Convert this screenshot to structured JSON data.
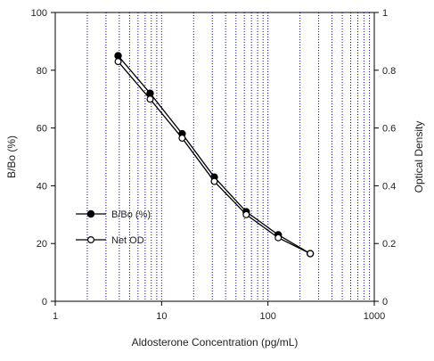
{
  "chart_data": {
    "type": "line",
    "title": "",
    "xlabel": "Aldosterone Concentration (pg/mL)",
    "ylabel": "B/Bo (%)",
    "y2label": "Optical Density",
    "xscale": "log",
    "xlim": [
      1,
      1000
    ],
    "ylim": [
      0,
      100
    ],
    "y2lim": [
      0,
      1
    ],
    "x_ticks": [
      1,
      10,
      100,
      1000
    ],
    "y_ticks": [
      0,
      20,
      40,
      60,
      80,
      100
    ],
    "y2_ticks": [
      0,
      0.2,
      0.4,
      0.6,
      0.8,
      1
    ],
    "grid": {
      "x_log_minor": true,
      "y": false,
      "style": "dotted"
    },
    "legend": {
      "placement": "lower-left"
    },
    "x": [
      3.9,
      7.8,
      15.6,
      31.3,
      62.5,
      125,
      250
    ],
    "series": [
      {
        "name": "B/Bo (%)",
        "axis": "left",
        "marker": "filled-circle",
        "values": [
          85,
          72,
          58,
          43,
          31,
          23,
          16.5
        ]
      },
      {
        "name": "Net OD",
        "axis": "right",
        "marker": "open-circle",
        "values": [
          0.83,
          0.7,
          0.565,
          0.415,
          0.3,
          0.22,
          0.165
        ]
      }
    ],
    "colors": {
      "axis": "#000000",
      "grid": "#0000cc",
      "series_line": "#000000"
    }
  }
}
